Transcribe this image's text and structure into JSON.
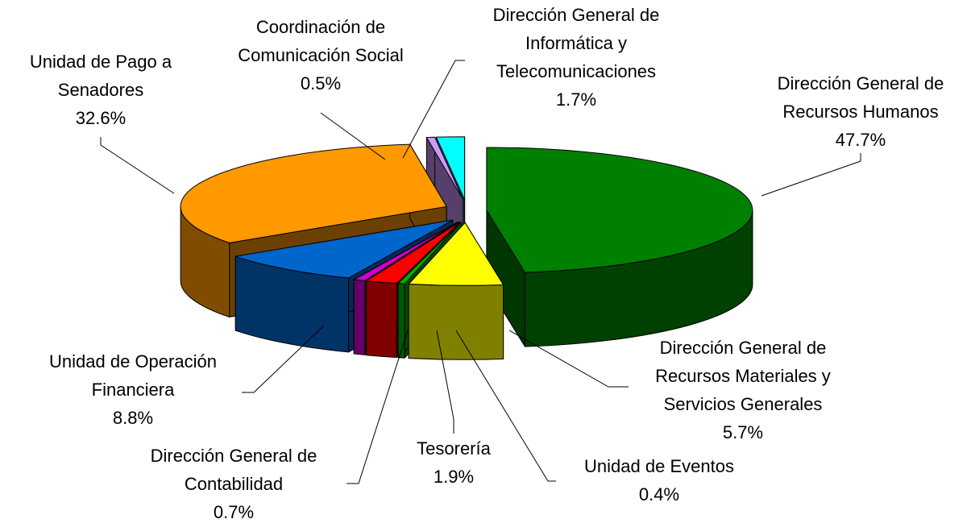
{
  "chart_data": {
    "type": "pie3d",
    "categories": [
      "Dirección General de\nRecursos Humanos",
      "Dirección General de\nRecursos Materiales y\nServicios Generales",
      "Unidad de Eventos",
      "Tesorería",
      "Dirección General de\nContabilidad",
      "Unidad de Operación\nFinanciera",
      "Unidad de Pago a\nSenadores",
      "Coordinación de\nComunicación Social",
      "Dirección General de\nInformática y\nTelecomunicaciones"
    ],
    "values": [
      47.7,
      5.7,
      0.4,
      1.9,
      0.7,
      8.8,
      32.6,
      0.5,
      1.7
    ],
    "value_labels": [
      "47.7%",
      "5.7%",
      "0.4%",
      "1.9%",
      "0.7%",
      "8.8%",
      "32.6%",
      "0.5%",
      "1.7%"
    ],
    "colors": [
      "#008000",
      "#ffff00",
      "#00b000",
      "#ff0000",
      "#cc00cc",
      "#0066cc",
      "#ff9900",
      "#cc99ff",
      "#00ffff"
    ]
  }
}
